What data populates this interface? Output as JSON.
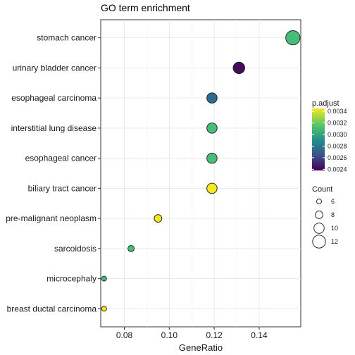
{
  "chart_data": {
    "type": "scatter",
    "title": "GO term enrichment",
    "xlabel": "GeneRatio",
    "ylabel": "",
    "xlim": [
      0.0695,
      0.1585
    ],
    "xticks": [
      0.08,
      0.1,
      0.12,
      0.14
    ],
    "xtick_labels": [
      "0.08",
      "0.10",
      "0.12",
      "0.14"
    ],
    "grid": true,
    "legend_position": "right",
    "categories": [
      "stomach cancer",
      "urinary bladder cancer",
      "esophageal carcinoma",
      "interstitial lung disease",
      "esophageal cancer",
      "biliary tract cancer",
      "pre-malignant neoplasm",
      "sarcoidosis",
      "microcephaly",
      "breast ductal carcinoma"
    ],
    "points": [
      {
        "term": "stomach cancer",
        "gene_ratio": 0.155,
        "count": 13,
        "p_adjust": 0.0031,
        "color": "#48BD79"
      },
      {
        "term": "urinary bladder cancer",
        "gene_ratio": 0.131,
        "count": 11,
        "p_adjust": 0.0024,
        "color": "#470A5C"
      },
      {
        "term": "esophageal carcinoma",
        "gene_ratio": 0.119,
        "count": 10,
        "p_adjust": 0.00272,
        "color": "#2C6A8E"
      },
      {
        "term": "interstitial lung disease",
        "gene_ratio": 0.119,
        "count": 10,
        "p_adjust": 0.0031,
        "color": "#48BD79"
      },
      {
        "term": "esophageal cancer",
        "gene_ratio": 0.119,
        "count": 10,
        "p_adjust": 0.0031,
        "color": "#48BD79"
      },
      {
        "term": "biliary tract cancer",
        "gene_ratio": 0.119,
        "count": 10,
        "p_adjust": 0.00345,
        "color": "#F7E620"
      },
      {
        "term": "pre-malignant neoplasm",
        "gene_ratio": 0.095,
        "count": 8,
        "p_adjust": 0.00345,
        "color": "#F7E620"
      },
      {
        "term": "sarcoidosis",
        "gene_ratio": 0.083,
        "count": 7,
        "p_adjust": 0.0031,
        "color": "#48BD79"
      },
      {
        "term": "microcephaly",
        "gene_ratio": 0.071,
        "count": 6,
        "p_adjust": 0.0031,
        "color": "#48BD79"
      },
      {
        "term": "breast ductal carcinoma",
        "gene_ratio": 0.071,
        "count": 6,
        "p_adjust": 0.00345,
        "color": "#F7E620"
      }
    ],
    "color_legend": {
      "title": "p.adjust",
      "range": [
        0.00238,
        0.00345
      ],
      "ticks": [
        0.0034,
        0.0032,
        0.003,
        0.0028,
        0.0026,
        0.0024
      ],
      "tick_labels": [
        "0.0034",
        "0.0032",
        "0.0030",
        "0.0028",
        "0.0026",
        "0.0024"
      ],
      "gradient_colors": [
        "#F7E620",
        "#5EC962",
        "#21918C",
        "#3B528B",
        "#440154"
      ]
    },
    "size_legend": {
      "title": "Count",
      "values": [
        6,
        8,
        10,
        12
      ],
      "labels": [
        "6",
        "8",
        "10",
        "12"
      ]
    }
  }
}
